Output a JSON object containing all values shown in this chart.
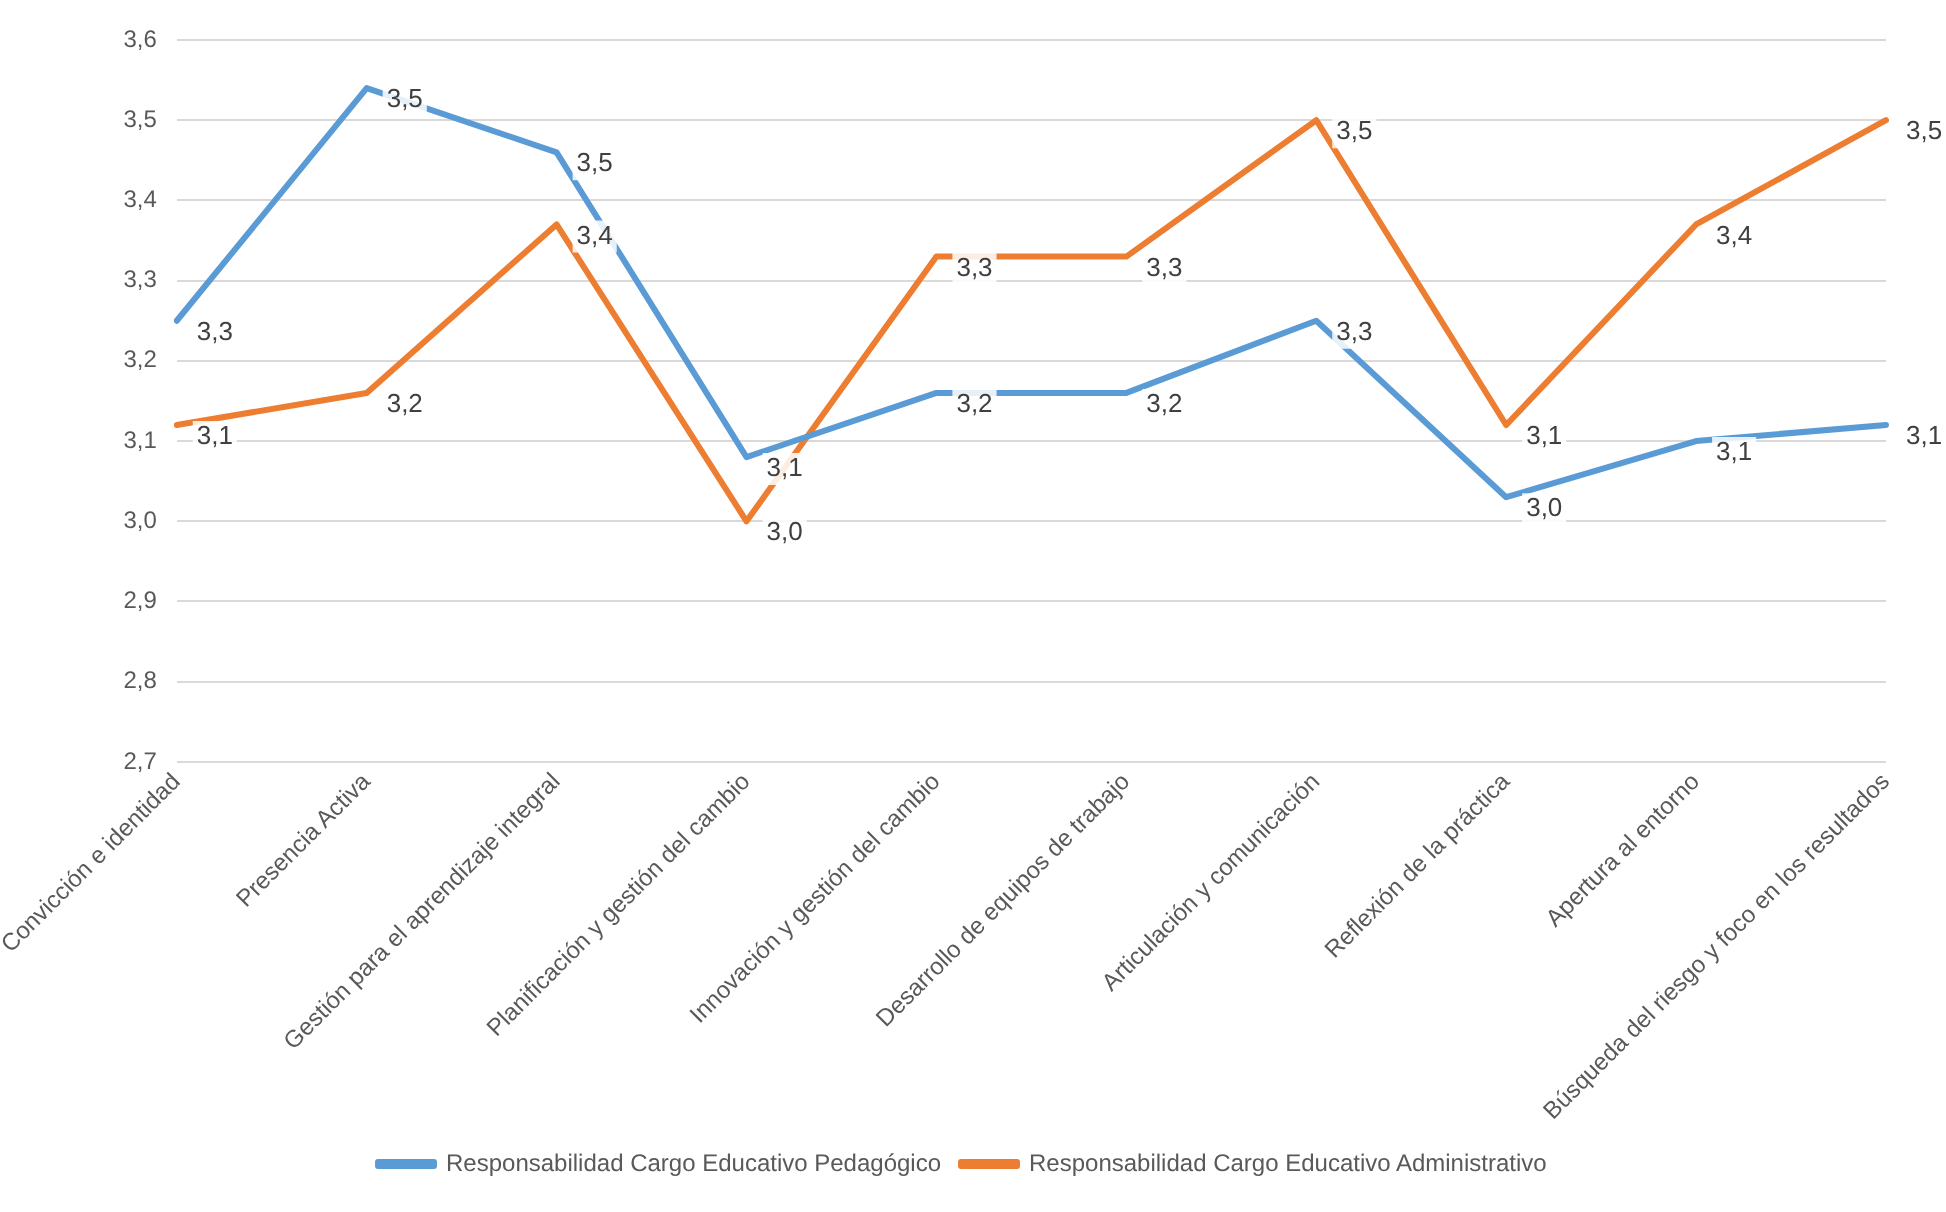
{
  "chart_data": {
    "type": "line",
    "categories": [
      "Convicción e identidad",
      "Presencia Activa",
      "Gestión para el aprendizaje integral",
      "Planificación y gestión del cambio",
      "Innovación y gestión del cambio",
      "Desarrollo de equipos de trabajo",
      "Articulación y comunicación",
      "Reflexión de la práctica",
      "Apertura al entorno",
      "Búsqueda del riesgo y foco en los resultados"
    ],
    "series": [
      {
        "name": "Responsabilidad Cargo Educativo Pedagógico",
        "color": "#5b9bd5",
        "values": [
          3.25,
          3.54,
          3.46,
          3.08,
          3.16,
          3.16,
          3.25,
          3.03,
          3.1,
          3.12
        ],
        "value_labels": [
          "3,3",
          "3,5",
          "3,5",
          "3,1",
          "3,2",
          "3,2",
          "3,3",
          "3,0",
          "3,1",
          "3,1"
        ]
      },
      {
        "name": "Responsabilidad Cargo Educativo Administrativo",
        "color": "#ed7d31",
        "values": [
          3.12,
          3.16,
          3.37,
          3.0,
          3.33,
          3.33,
          3.5,
          3.12,
          3.37,
          3.5
        ],
        "value_labels": [
          "3,1",
          "3,2",
          "3,4",
          "3,0",
          "3,3",
          "3,3",
          "3,5",
          "3,1",
          "3,4",
          "3,5"
        ]
      }
    ],
    "ylim": [
      2.7,
      3.6
    ],
    "yticks": [
      {
        "value": 2.7,
        "label": "2,7"
      },
      {
        "value": 2.8,
        "label": "2,8"
      },
      {
        "value": 2.9,
        "label": "2,9"
      },
      {
        "value": 3.0,
        "label": "3,0"
      },
      {
        "value": 3.1,
        "label": "3,1"
      },
      {
        "value": 3.2,
        "label": "3,2"
      },
      {
        "value": 3.3,
        "label": "3,3"
      },
      {
        "value": 3.4,
        "label": "3,4"
      },
      {
        "value": 3.5,
        "label": "3,5"
      },
      {
        "value": 3.6,
        "label": "3,6"
      }
    ],
    "grid": "y",
    "legend": "bottom",
    "marker": "none",
    "line_style": "solid"
  }
}
